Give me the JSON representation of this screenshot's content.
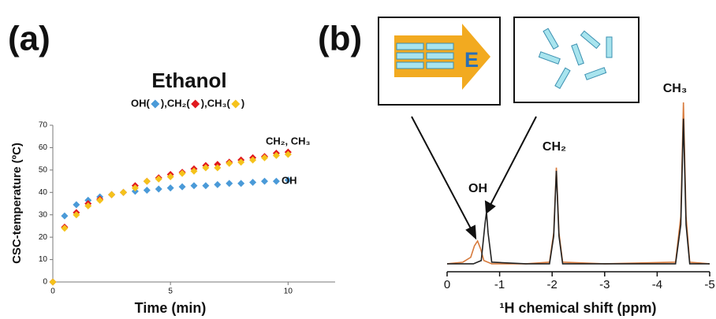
{
  "chart_data": [
    {
      "type": "scatter",
      "panel_label": "(a)",
      "title": "Ethanol",
      "legend_open": "(",
      "legend_close": ")",
      "legend_separator": ", ",
      "x_label": "Time (min)",
      "y_label": "CSC-temperature (ºC)",
      "x": [
        0,
        0.5,
        1,
        1.5,
        2,
        2.5,
        3,
        3.5,
        4,
        4.5,
        5,
        5.5,
        6,
        6.5,
        7,
        7.5,
        8,
        8.5,
        9,
        9.5,
        10
      ],
      "series": [
        {
          "name": "OH",
          "color": "#4a9ad8",
          "values": [
            0,
            29.5,
            34.5,
            36.5,
            38,
            39,
            40,
            40.5,
            41,
            41.5,
            42,
            42.5,
            43,
            43,
            43.5,
            44,
            44,
            44.5,
            45,
            45,
            45.5
          ]
        },
        {
          "name": "CH₂",
          "color": "#e0181e",
          "values": [
            0,
            24.5,
            31,
            35,
            37,
            39,
            40,
            43,
            45,
            46.5,
            48,
            49,
            50.5,
            52,
            52.5,
            53.5,
            54.5,
            55.5,
            56,
            57.5,
            58
          ]
        },
        {
          "name": "CH₃",
          "color": "#f5c21b",
          "values": [
            0,
            24,
            30,
            34,
            36.5,
            39,
            40,
            42,
            45,
            46,
            47,
            48.5,
            49.5,
            51,
            51,
            53,
            53.5,
            54.5,
            55.5,
            56.5,
            57
          ]
        }
      ],
      "xlim": [
        0,
        12
      ],
      "xticks": [
        0,
        5,
        10
      ],
      "ylim": [
        0,
        70
      ],
      "yticks": [
        0,
        10,
        20,
        30,
        40,
        50,
        60,
        70
      ],
      "annotations": [
        "CH₂, CH₃",
        "OH"
      ]
    },
    {
      "type": "line",
      "panel_label": "(b)",
      "inset_label": "E",
      "x_label": "¹H chemical shift (ppm)",
      "series": [
        {
          "color": "#d77a3c",
          "x": [
            0,
            -0.3,
            -0.45,
            -0.52,
            -0.58,
            -0.64,
            -0.7,
            -0.85,
            -1.5,
            -1.95,
            -2.03,
            -2.08,
            -2.13,
            -2.2,
            -3,
            -4.35,
            -4.45,
            -4.5,
            -4.55,
            -4.62,
            -5
          ],
          "values": [
            1,
            2,
            5,
            12,
            15,
            10,
            3,
            1,
            1,
            2,
            20,
            60,
            20,
            2,
            1,
            2,
            30,
            100,
            30,
            2,
            1
          ]
        },
        {
          "color": "#222222",
          "x": [
            0,
            -0.5,
            -0.65,
            -0.72,
            -0.75,
            -0.78,
            -0.85,
            -1.5,
            -1.95,
            -2.03,
            -2.08,
            -2.13,
            -2.2,
            -3,
            -4.35,
            -4.45,
            -4.5,
            -4.55,
            -4.62,
            -5
          ],
          "values": [
            1,
            1,
            3,
            25,
            33,
            20,
            2,
            1,
            1,
            18,
            58,
            18,
            1,
            1,
            1,
            25,
            90,
            25,
            1,
            1
          ]
        }
      ],
      "xlim": [
        0,
        -5
      ],
      "xticks": [
        0,
        -1,
        -2,
        -3,
        -4,
        -5
      ],
      "ylim": [
        0,
        100
      ],
      "annotations": [
        "OH",
        "CH₂",
        "CH₃"
      ]
    }
  ]
}
